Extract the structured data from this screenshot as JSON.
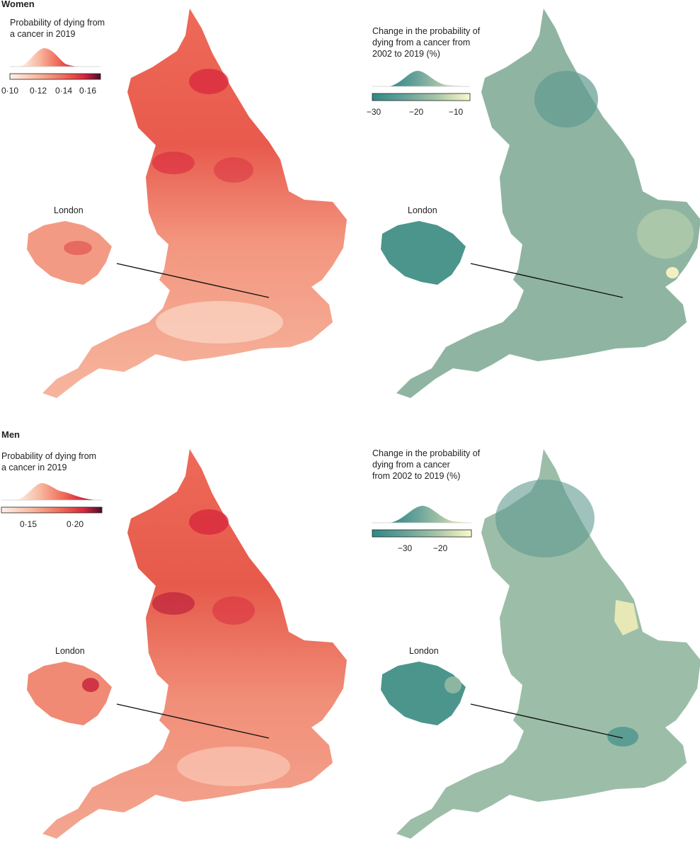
{
  "women": {
    "heading": "Women",
    "probability": {
      "legend_title": "Probability of dying from\na cancer in 2019",
      "ticks": [
        "0·10",
        "0·12",
        "0·14",
        "0·16"
      ],
      "inset_label": "London",
      "palette": [
        "#fdf1ea",
        "#f8b9a0",
        "#ee6a58",
        "#d8283d",
        "#4d0a2b"
      ]
    },
    "change": {
      "legend_title": "Change in the probability of\ndying from a cancer from\n2002 to 2019 (%)",
      "ticks": [
        "−30",
        "−20",
        "−10"
      ],
      "inset_label": "London",
      "palette": [
        "#2f8a86",
        "#6aa39b",
        "#a6c4a7",
        "#d8e3b9",
        "#fbf8cf"
      ]
    }
  },
  "men": {
    "heading": "Men",
    "probability": {
      "legend_title": "Probability of dying from\na cancer in 2019",
      "ticks": [
        "0·15",
        "0·20"
      ],
      "inset_label": "London",
      "palette": [
        "#fdf1ea",
        "#f8b9a0",
        "#ee6a58",
        "#d8283d",
        "#4d0a2b"
      ]
    },
    "change": {
      "legend_title": "Change in the probability of\ndying from a cancer\nfrom 2002 to 2019 (%)",
      "ticks": [
        "−30",
        "−20"
      ],
      "inset_label": "London",
      "palette": [
        "#2f8a86",
        "#6aa39b",
        "#a6c4a7",
        "#d8e3b9",
        "#fbf8cf"
      ]
    }
  }
}
